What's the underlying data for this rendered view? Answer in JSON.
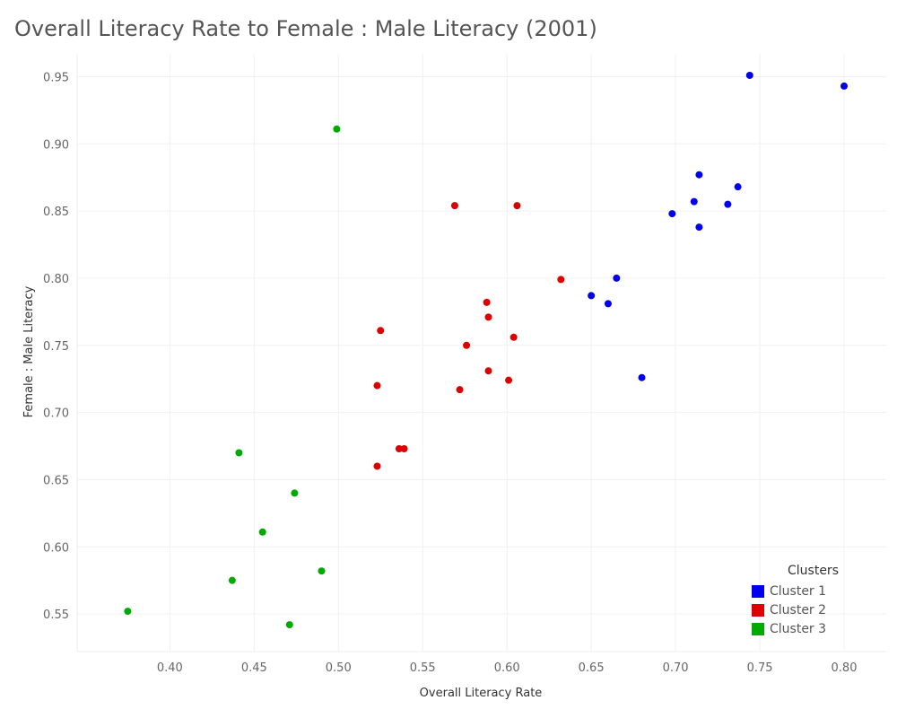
{
  "chart_data": {
    "type": "scatter",
    "title": "Overall Literacy Rate to Female : Male Literacy (2001)",
    "xlabel": "Overall Literacy Rate",
    "ylabel": "Female : Male Literacy",
    "xlim": [
      0.345,
      0.825
    ],
    "ylim": [
      0.522,
      0.967
    ],
    "xticks": [
      "0.40",
      "0.45",
      "0.50",
      "0.55",
      "0.60",
      "0.65",
      "0.70",
      "0.75",
      "0.80"
    ],
    "yticks": [
      "0.55",
      "0.60",
      "0.65",
      "0.70",
      "0.75",
      "0.80",
      "0.85",
      "0.90",
      "0.95"
    ],
    "grid": true,
    "legend": {
      "title": "Clusters",
      "placement": "bottom-right"
    },
    "series": [
      {
        "name": "Cluster 1",
        "color": "#0000ee",
        "points": [
          [
            0.744,
            0.951
          ],
          [
            0.8,
            0.943
          ],
          [
            0.714,
            0.877
          ],
          [
            0.737,
            0.868
          ],
          [
            0.711,
            0.857
          ],
          [
            0.731,
            0.855
          ],
          [
            0.698,
            0.848
          ],
          [
            0.714,
            0.838
          ],
          [
            0.665,
            0.8
          ],
          [
            0.65,
            0.787
          ],
          [
            0.66,
            0.781
          ],
          [
            0.68,
            0.726
          ]
        ]
      },
      {
        "name": "Cluster 2",
        "color": "#dd0000",
        "points": [
          [
            0.569,
            0.854
          ],
          [
            0.606,
            0.854
          ],
          [
            0.632,
            0.799
          ],
          [
            0.588,
            0.782
          ],
          [
            0.589,
            0.771
          ],
          [
            0.525,
            0.761
          ],
          [
            0.604,
            0.756
          ],
          [
            0.576,
            0.75
          ],
          [
            0.589,
            0.731
          ],
          [
            0.601,
            0.724
          ],
          [
            0.523,
            0.72
          ],
          [
            0.572,
            0.717
          ],
          [
            0.536,
            0.673
          ],
          [
            0.539,
            0.673
          ],
          [
            0.523,
            0.66
          ]
        ]
      },
      {
        "name": "Cluster 3",
        "color": "#00aa00",
        "points": [
          [
            0.499,
            0.911
          ],
          [
            0.441,
            0.67
          ],
          [
            0.474,
            0.64
          ],
          [
            0.455,
            0.611
          ],
          [
            0.49,
            0.582
          ],
          [
            0.437,
            0.575
          ],
          [
            0.375,
            0.552
          ],
          [
            0.471,
            0.542
          ]
        ]
      }
    ]
  }
}
